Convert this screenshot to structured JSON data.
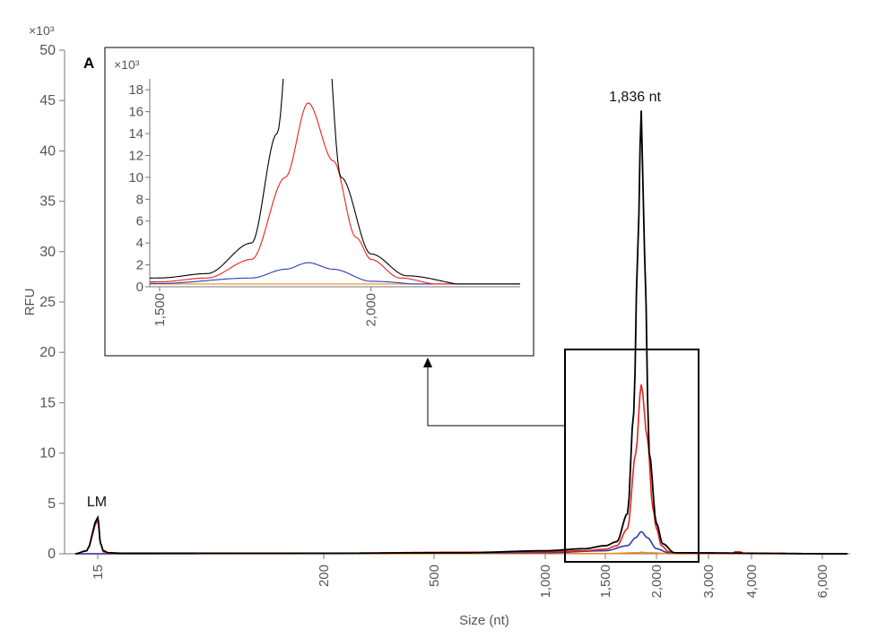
{
  "chart_data": {
    "type": "line",
    "title": "",
    "xlabel": "Size (nt)",
    "ylabel": "RFU",
    "yscale_label": "×10³",
    "xscale": "log",
    "xlim": [
      14,
      7000
    ],
    "ylim": [
      0,
      50
    ],
    "x_ticks": [
      {
        "value": 15,
        "label": "15"
      },
      {
        "value": 200,
        "label": "200"
      },
      {
        "value": 500,
        "label": "500"
      },
      {
        "value": 1000,
        "label": "1,000"
      },
      {
        "value": 1500,
        "label": "1,500"
      },
      {
        "value": 2000,
        "label": "2,000"
      },
      {
        "value": 3000,
        "label": "3,000"
      },
      {
        "value": 4000,
        "label": "4,000"
      },
      {
        "value": 6000,
        "label": "6,000"
      }
    ],
    "y_ticks": [
      0,
      5,
      10,
      15,
      20,
      25,
      30,
      35,
      40,
      45,
      50
    ],
    "annotations": [
      {
        "text": "1,836 nt",
        "x": 1836,
        "y": 47.5
      },
      {
        "text": "LM",
        "x": 15,
        "y": 5
      }
    ],
    "grid": false,
    "colors": {
      "black": "#000000",
      "red": "#e8231e",
      "blue": "#2a3bb5",
      "orange": "#f08c1a",
      "axis": "#777777"
    },
    "series": [
      {
        "color_key": "black",
        "x": [
          14,
          14.5,
          15,
          15.5,
          16,
          17,
          20,
          30,
          200,
          600,
          1000,
          1300,
          1500,
          1600,
          1700,
          1760,
          1800,
          1836,
          1870,
          1920,
          2000,
          2100,
          2300,
          7000
        ],
        "y": [
          0,
          0.3,
          3.6,
          1.0,
          0.3,
          0.1,
          0.05,
          0.05,
          0.05,
          0.1,
          0.3,
          0.5,
          0.8,
          1.2,
          4.0,
          14.0,
          30.0,
          44.0,
          30.0,
          10.0,
          3.0,
          1.0,
          0.1,
          0
        ]
      },
      {
        "color_key": "red",
        "x": [
          14,
          14.5,
          15,
          15.5,
          16,
          17,
          30,
          200,
          600,
          1000,
          1300,
          1500,
          1600,
          1700,
          1780,
          1836,
          1900,
          1960,
          2000,
          2080,
          2200,
          2400,
          3500,
          3600,
          3700,
          3800,
          7000
        ],
        "y": [
          0,
          0.3,
          3.3,
          1.0,
          0.2,
          0.05,
          0.05,
          0.05,
          0.15,
          0.2,
          0.3,
          0.45,
          0.8,
          2.5,
          10.0,
          16.8,
          11.5,
          4.5,
          2.5,
          0.8,
          0.2,
          0.05,
          0.05,
          0.2,
          0.2,
          0.05,
          0
        ]
      },
      {
        "color_key": "blue",
        "x": [
          14,
          200,
          1000,
          1500,
          1700,
          1780,
          1836,
          1900,
          2000,
          2200,
          7000
        ],
        "y": [
          0,
          0.05,
          0.1,
          0.3,
          0.8,
          1.6,
          2.2,
          1.6,
          0.5,
          0.1,
          0
        ]
      },
      {
        "color_key": "orange",
        "x": [
          14,
          1500,
          1800,
          1836,
          1900,
          2200,
          7000
        ],
        "y": [
          0,
          0.02,
          0.1,
          0.15,
          0.1,
          0.02,
          0
        ]
      }
    ],
    "inset": {
      "label": "A",
      "yscale_label": "×10³",
      "xscale": "log",
      "xlim": [
        1480,
        2450
      ],
      "ylim": [
        0,
        19
      ],
      "x_ticks": [
        {
          "value": 1500,
          "label": "1,500"
        },
        {
          "value": 2000,
          "label": "2,000"
        }
      ],
      "y_ticks": [
        0,
        2,
        4,
        6,
        8,
        10,
        12,
        14,
        16,
        18
      ]
    }
  }
}
